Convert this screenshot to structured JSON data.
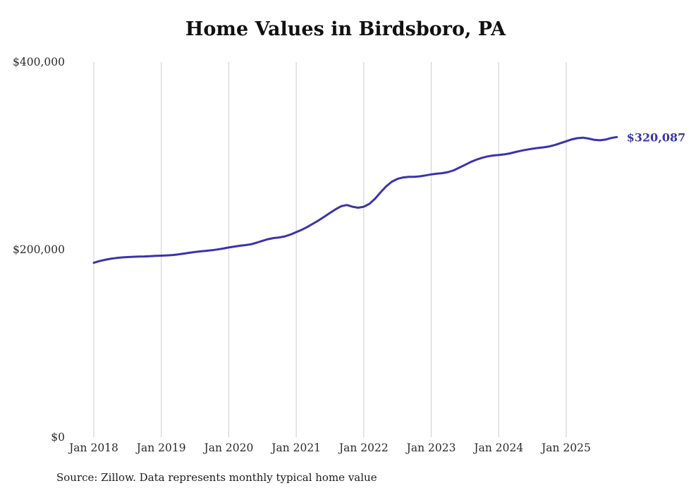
{
  "chart_data": {
    "type": "line",
    "title": "Home Values in Birdsboro, PA",
    "source": "Source: Zillow. Data represents monthly typical home value",
    "end_label": "$320,087",
    "line_color": "#3934ac",
    "gridline_color": "#cccccc",
    "tick_text_color": "#2b2b2b",
    "grid": "vertical-only",
    "legend": "none",
    "ylim": [
      0,
      400000
    ],
    "y_ticks": [
      0,
      200000,
      400000
    ],
    "y_tick_labels": [
      "$0",
      "$200,000",
      "$400,000"
    ],
    "x_tick_labels": [
      "Jan 2018",
      "Jan 2019",
      "Jan 2020",
      "Jan 2021",
      "Jan 2022",
      "Jan 2023",
      "Jan 2024",
      "Jan 2025"
    ],
    "x": [
      "2018-01",
      "2018-02",
      "2018-03",
      "2018-04",
      "2018-05",
      "2018-06",
      "2018-07",
      "2018-08",
      "2018-09",
      "2018-10",
      "2018-11",
      "2018-12",
      "2019-01",
      "2019-02",
      "2019-03",
      "2019-04",
      "2019-05",
      "2019-06",
      "2019-07",
      "2019-08",
      "2019-09",
      "2019-10",
      "2019-11",
      "2019-12",
      "2020-01",
      "2020-02",
      "2020-03",
      "2020-04",
      "2020-05",
      "2020-06",
      "2020-07",
      "2020-08",
      "2020-09",
      "2020-10",
      "2020-11",
      "2020-12",
      "2021-01",
      "2021-02",
      "2021-03",
      "2021-04",
      "2021-05",
      "2021-06",
      "2021-07",
      "2021-08",
      "2021-09",
      "2021-10",
      "2021-11",
      "2021-12",
      "2022-01",
      "2022-02",
      "2022-03",
      "2022-04",
      "2022-05",
      "2022-06",
      "2022-07",
      "2022-08",
      "2022-09",
      "2022-10",
      "2022-11",
      "2022-12",
      "2023-01",
      "2023-02",
      "2023-03",
      "2023-04",
      "2023-05",
      "2023-06",
      "2023-07",
      "2023-08",
      "2023-09",
      "2023-10",
      "2023-11",
      "2023-12",
      "2024-01",
      "2024-02",
      "2024-03",
      "2024-04",
      "2024-05",
      "2024-06",
      "2024-07",
      "2024-08",
      "2024-09",
      "2024-10",
      "2024-11",
      "2024-12",
      "2025-01",
      "2025-02",
      "2025-03",
      "2025-04",
      "2025-05",
      "2025-06",
      "2025-07",
      "2025-08",
      "2025-09",
      "2025-10"
    ],
    "values": [
      186000,
      187800,
      189200,
      190300,
      191100,
      191700,
      192100,
      192400,
      192600,
      192800,
      193100,
      193400,
      193600,
      193900,
      194300,
      195000,
      195800,
      196700,
      197500,
      198200,
      198800,
      199400,
      200200,
      201200,
      202300,
      203300,
      204200,
      204900,
      205800,
      207500,
      209500,
      211200,
      212400,
      213100,
      214200,
      216200,
      218700,
      221300,
      224300,
      227800,
      231300,
      235200,
      239200,
      243100,
      246400,
      247600,
      245800,
      244700,
      245800,
      248800,
      254200,
      261200,
      267600,
      272500,
      275500,
      277000,
      277600,
      277700,
      278200,
      279200,
      280200,
      281000,
      281600,
      282700,
      284600,
      287500,
      290400,
      293400,
      295900,
      297900,
      299400,
      300400,
      301000,
      301600,
      302600,
      304100,
      305500,
      306600,
      307600,
      308500,
      309100,
      310100,
      311600,
      313600,
      315600,
      317600,
      318900,
      319400,
      318400,
      317100,
      316600,
      317400,
      319000,
      320087
    ]
  }
}
